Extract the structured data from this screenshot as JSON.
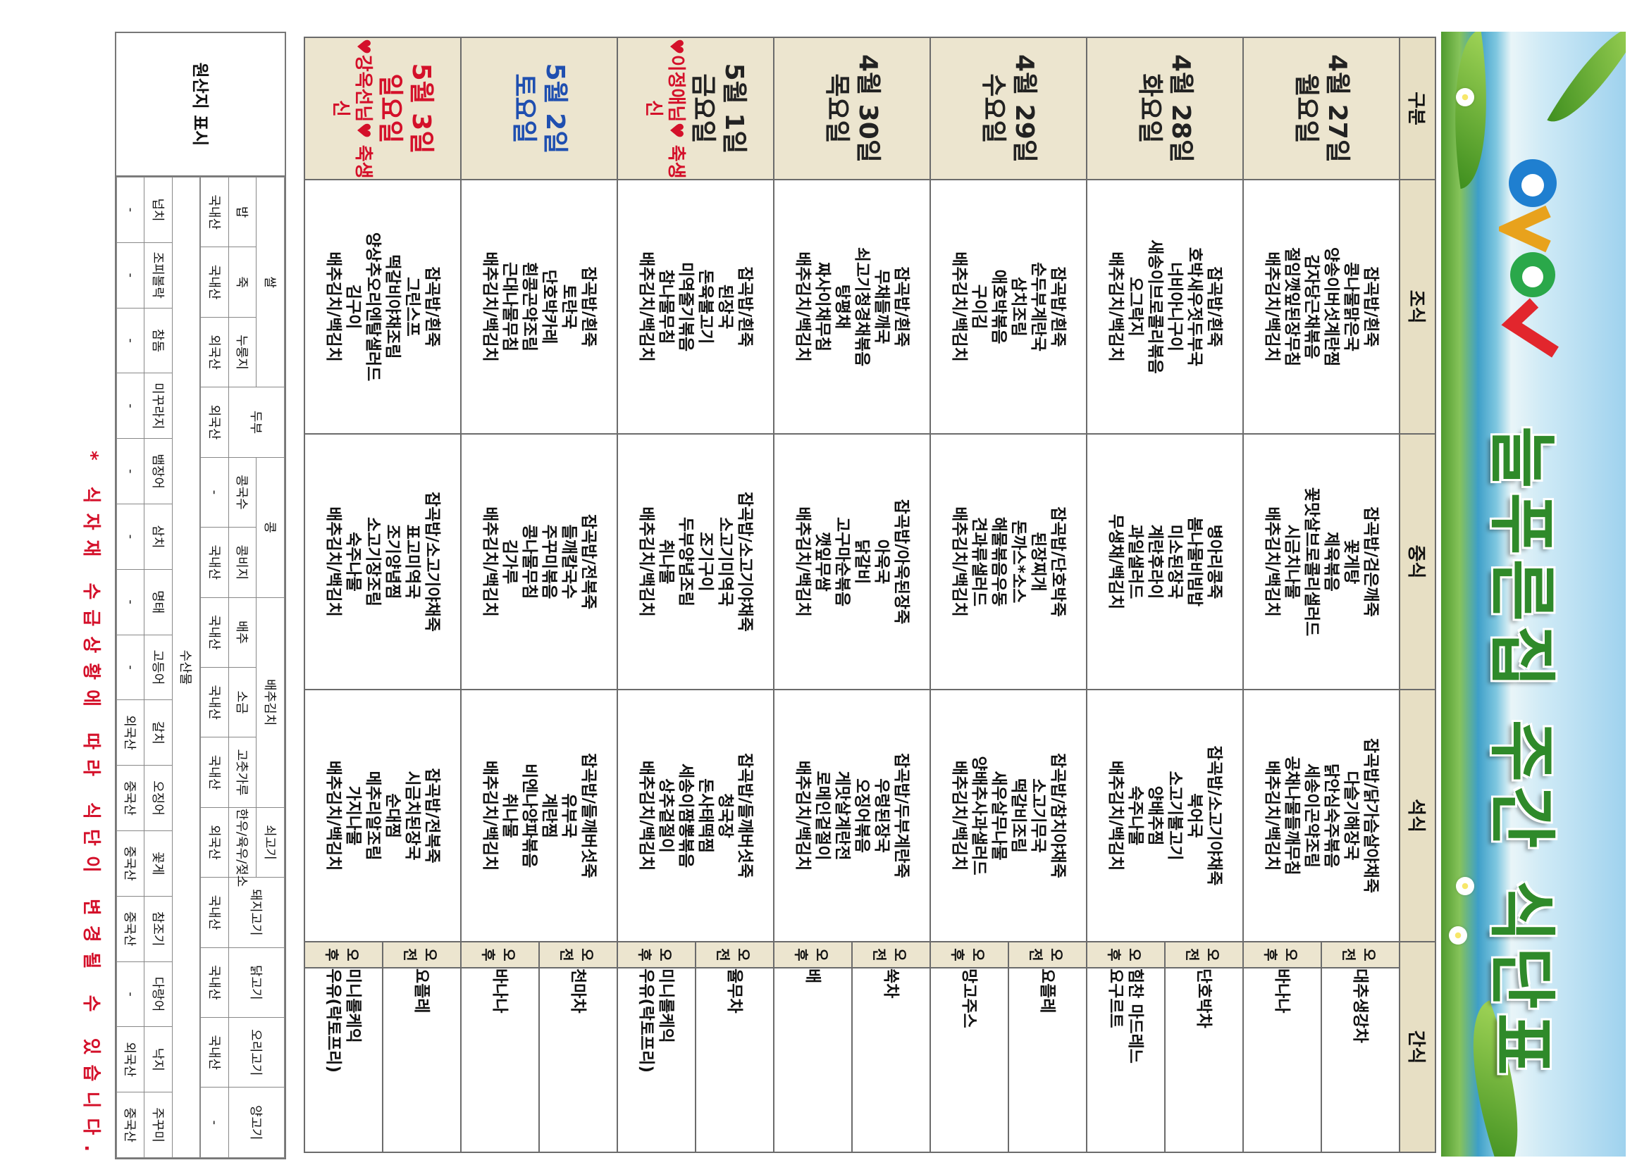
{
  "header": {
    "title": "늘푸른집 주간 식단표"
  },
  "table": {
    "columns": [
      "구분",
      "조식",
      "중식",
      "석식",
      "간식"
    ],
    "rows": [
      {
        "date": "4월 27일",
        "day": "월요일",
        "color": "#222222",
        "breakfast": [
          "잡곡밥/흰죽",
          "콩나물맑은국",
          "양송이버섯계란찜",
          "감자당근채볶음",
          "절임깻잎된장무침",
          "배추김치/백김치"
        ],
        "lunch": [
          "잡곡밥/검은깨죽",
          "꽃게탕",
          "제육볶음",
          "꽃맛살브로콜리샐러드",
          "시금치나물",
          "배추김치/백김치"
        ],
        "dinner": [
          "잡곡밥/닭가슴살야채죽",
          "다슬기해장국",
          "닭안심숙주볶음",
          "세송이곤약조림",
          "공채나물들깨무침",
          "배추김치/백김치"
        ],
        "snack": [
          {
            "time": "오전",
            "items": [
              "대추생강차"
            ]
          },
          {
            "time": "오후",
            "items": [
              "바나나"
            ]
          }
        ]
      },
      {
        "date": "4월 28일",
        "day": "화요일",
        "color": "#222222",
        "breakfast": [
          "잡곡밥/흰죽",
          "호박새우젓두부국",
          "너비아니구이",
          "새송이브로콜리볶음",
          "오그락지",
          "배추김치/백김치"
        ],
        "lunch": [
          "병아리콩죽",
          "봄나물비빔밥",
          "미소된장국",
          "계란후라이",
          "과일샐러드",
          "무생채/백김치"
        ],
        "dinner": [
          "잡곡밥/소고기야채죽",
          "북어국",
          "소고기불고기",
          "양배추찜",
          "숙주나물",
          "배추김치/백김치"
        ],
        "snack": [
          {
            "time": "오전",
            "items": [
              "단호박차"
            ]
          },
          {
            "time": "오후",
            "items": [
              "힘찬 마드레느",
              "요구르트"
            ]
          }
        ]
      },
      {
        "date": "4월 29일",
        "day": "수요일",
        "color": "#222222",
        "breakfast": [
          "잡곡밥/흰죽",
          "순두부계란국",
          "삼치조림",
          "애호박볶음",
          "구이김",
          "배추김치/백김치"
        ],
        "lunch": [
          "잡곡밥/단호박죽",
          "된장찌개",
          "돈까스*소스",
          "해물볶음우동",
          "견과류샐러드",
          "배추김치/백김치"
        ],
        "dinner": [
          "잡곡밥/참치야채죽",
          "소고기무국",
          "떡갈비조림",
          "새우살무나물",
          "양배추사과샐러드",
          "배추김치/백김치"
        ],
        "snack": [
          {
            "time": "오전",
            "items": [
              "요플레"
            ]
          },
          {
            "time": "오후",
            "items": [
              "망고주스"
            ]
          }
        ]
      },
      {
        "date": "4월 30일",
        "day": "목요일",
        "color": "#222222",
        "breakfast": [
          "잡곡밥/흰죽",
          "무채들깨국",
          "쇠고기청경채볶음",
          "탕평채",
          "짜사이채무침",
          "배추김치/백김치"
        ],
        "lunch": [
          "잡곡밥/아욱된장죽",
          "아욱국",
          "닭갈비",
          "고구마순볶음",
          "깻잎무쌈",
          "배추김치/백김치"
        ],
        "dinner": [
          "잡곡밥/두부계란죽",
          "우렁된장국",
          "오징어볶음",
          "게맛살계란전",
          "로메인겉절이",
          "배추김치/백김치"
        ],
        "snack": [
          {
            "time": "오전",
            "items": [
              "쑥차"
            ]
          },
          {
            "time": "오후",
            "items": [
              "배"
            ]
          }
        ]
      },
      {
        "date": "5월 1일",
        "day": "금요일",
        "color": "#222222",
        "note": "♥이정애님♥ 축생신",
        "breakfast": [
          "잡곡밥/흰죽",
          "된장국",
          "돈육불고기",
          "미역줄기볶음",
          "참나물무침",
          "배추김치/백김치"
        ],
        "lunch": [
          "잡곡밥/소고기야채죽",
          "소고기미역국",
          "조기구이",
          "두부양념조림",
          "취나물",
          "배추김치/백김치"
        ],
        "dinner": [
          "잡곡밥/들깨버섯죽",
          "청국장",
          "돈사태떡찜",
          "세송이짬뽕볶음",
          "상추겉절이",
          "배추김치/백김치"
        ],
        "snack": [
          {
            "time": "오전",
            "items": [
              "율무차"
            ]
          },
          {
            "time": "오후",
            "items": [
              "미니롤케익",
              "우유(락토프리)"
            ]
          }
        ]
      },
      {
        "date": "5월 2일",
        "day": "토요일",
        "color": "#1f4fb0",
        "breakfast": [
          "잡곡밥/흰죽",
          "토란국",
          "단호박카레",
          "흰콩곤약조림",
          "근대나물무침",
          "배추김치/백김치"
        ],
        "lunch": [
          "잡곡밥/전복죽",
          "들깨칼국수",
          "주꾸미볶음",
          "콩나물무침",
          "김가루",
          "배추김치/백김치"
        ],
        "dinner": [
          "잡곡밥/들깨버섯죽",
          "유부국",
          "계란찜",
          "비엔나양파볶음",
          "취나물",
          "배추김치/백김치"
        ],
        "snack": [
          {
            "time": "오전",
            "items": [
              "천마차"
            ]
          },
          {
            "time": "오후",
            "items": [
              "바나나"
            ]
          }
        ]
      },
      {
        "date": "5월 3일",
        "day": "일요일",
        "color": "#d4102a",
        "note": "♥강옥선님♥ 축생신",
        "breakfast": [
          "잡곡밥/흰죽",
          "그린스프",
          "떡갈비야채조림",
          "양상추오리엔탈샐러드",
          "김구이",
          "배추김치/백김치"
        ],
        "lunch": [
          "잡곡밥/소고기야채죽",
          "표고미역국",
          "조기양념찜",
          "소고기장조림",
          "숙주나물",
          "배추김치/백김치"
        ],
        "dinner": [
          "잡곡밥/전복죽",
          "시금치된장국",
          "순대찜",
          "메추리알조림",
          "가지나물",
          "배추김치/백김치"
        ],
        "snack": [
          {
            "time": "오전",
            "items": [
              "요플레"
            ]
          },
          {
            "time": "오후",
            "items": [
              "미니롤케익",
              "우유(락토프리)"
            ]
          }
        ]
      }
    ]
  },
  "origin": {
    "title": "원산지 표시",
    "groups": [
      {
        "name": "쌀",
        "items": [
          {
            "name": "밥",
            "origin": "국내산"
          },
          {
            "name": "죽",
            "origin": "국내산"
          },
          {
            "name": "누룽지",
            "origin": "외국산"
          }
        ]
      },
      {
        "name": "두부",
        "origin": "외국산"
      },
      {
        "name": "콩",
        "items": [
          {
            "name": "콩국수",
            "origin": "-"
          },
          {
            "name": "콩비지",
            "origin": "국내산"
          }
        ]
      },
      {
        "name": "배추김치",
        "items": [
          {
            "name": "배추",
            "origin": "국내산"
          },
          {
            "name": "소금",
            "origin": "국내산"
          },
          {
            "name": "고춧가루",
            "origin": "국내산"
          }
        ]
      },
      {
        "name": "쇠고기",
        "items": [
          {
            "name": "한우/육우/젖소",
            "origin": "외국산"
          }
        ]
      },
      {
        "name": "돼지고기",
        "origin": "국내산"
      },
      {
        "name": "닭고기",
        "origin": "국내산"
      },
      {
        "name": "오리고기",
        "origin": "국내산"
      },
      {
        "name": "양고기",
        "origin": "-"
      }
    ],
    "seafood": {
      "name": "수산물",
      "items": [
        {
          "name": "넙치",
          "origin": "-"
        },
        {
          "name": "조피볼락",
          "origin": "-"
        },
        {
          "name": "참돔",
          "origin": "-"
        },
        {
          "name": "미꾸라지",
          "origin": "-"
        },
        {
          "name": "뱀장어",
          "origin": "-"
        },
        {
          "name": "삼치",
          "origin": "-"
        },
        {
          "name": "명태",
          "origin": "-"
        },
        {
          "name": "고등어",
          "origin": "-"
        },
        {
          "name": "갈치",
          "origin": "외국산"
        },
        {
          "name": "오징어",
          "origin": "중국산"
        },
        {
          "name": "꽃게",
          "origin": "중국산"
        },
        {
          "name": "참조기",
          "origin": "중국산"
        },
        {
          "name": "다랑어",
          "origin": "-"
        },
        {
          "name": "낙지",
          "origin": "외국산"
        },
        {
          "name": "주꾸미",
          "origin": "중국산"
        }
      ]
    }
  },
  "footer": "* 식자재 수급상황에 따라 식단이 변경될 수 있습니다."
}
